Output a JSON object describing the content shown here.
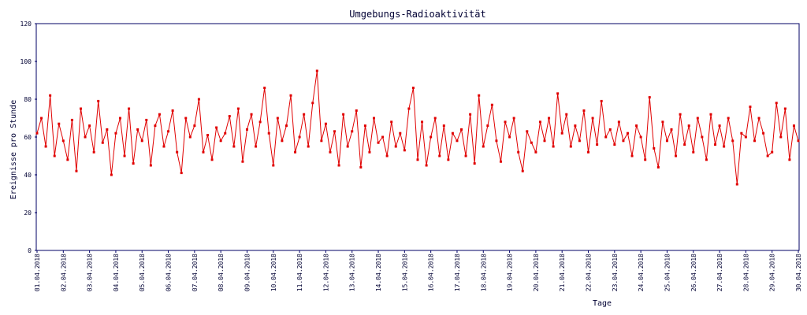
{
  "chart_data": {
    "type": "line",
    "title": "Umgebungs-Radioaktivität",
    "x_label": "Tage",
    "y_label": "Ereignisse pro Stunde",
    "categories": [
      "01.04.2018",
      null,
      null,
      null,
      null,
      null,
      "02.04.2018",
      null,
      null,
      null,
      null,
      null,
      "03.04.2018",
      null,
      null,
      null,
      null,
      null,
      "04.04.2018",
      null,
      null,
      null,
      null,
      null,
      "05.04.2018",
      null,
      null,
      null,
      null,
      null,
      "06.04.2018",
      null,
      null,
      null,
      null,
      null,
      "07.04.2018",
      null,
      null,
      null,
      null,
      null,
      "08.04.2018",
      null,
      null,
      null,
      null,
      null,
      "09.04.2018",
      null,
      null,
      null,
      null,
      null,
      "10.04.2018",
      null,
      null,
      null,
      null,
      null,
      "11.04.2018",
      null,
      null,
      null,
      null,
      null,
      "12.04.2018",
      null,
      null,
      null,
      null,
      null,
      "13.04.2018",
      null,
      null,
      null,
      null,
      null,
      "14.04.2018",
      null,
      null,
      null,
      null,
      null,
      "15.04.2018",
      null,
      null,
      null,
      null,
      null,
      "16.04.2018",
      null,
      null,
      null,
      null,
      null,
      "17.04.2018",
      null,
      null,
      null,
      null,
      null,
      "18.04.2018",
      null,
      null,
      null,
      null,
      null,
      "19.04.2018",
      null,
      null,
      null,
      null,
      null,
      "20.04.2018",
      null,
      null,
      null,
      null,
      null,
      "21.04.2018",
      null,
      null,
      null,
      null,
      null,
      "22.04.2018",
      null,
      null,
      null,
      null,
      null,
      "23.04.2018",
      null,
      null,
      null,
      null,
      null,
      "24.04.2018",
      null,
      null,
      null,
      null,
      null,
      "25.04.2018",
      null,
      null,
      null,
      null,
      null,
      "26.04.2018",
      null,
      null,
      null,
      null,
      null,
      "27.04.2018",
      null,
      null,
      null,
      null,
      null,
      "28.04.2018",
      null,
      null,
      null,
      null,
      null,
      "29.04.2018",
      null,
      null,
      null,
      null,
      null,
      "30.04.2018"
    ],
    "values": [
      62,
      70,
      55,
      82,
      50,
      67,
      58,
      48,
      69,
      42,
      75,
      60,
      66,
      52,
      79,
      57,
      64,
      40,
      62,
      70,
      50,
      75,
      46,
      64,
      58,
      69,
      45,
      66,
      72,
      55,
      63,
      74,
      52,
      41,
      70,
      60,
      66,
      80,
      52,
      61,
      48,
      65,
      58,
      62,
      71,
      55,
      75,
      47,
      64,
      72,
      55,
      68,
      86,
      62,
      45,
      70,
      58,
      66,
      82,
      52,
      60,
      72,
      55,
      78,
      95,
      58,
      67,
      52,
      63,
      45,
      72,
      55,
      63,
      74,
      44,
      66,
      52,
      70,
      57,
      60,
      50,
      68,
      55,
      62,
      53,
      75,
      86,
      48,
      68,
      45,
      60,
      70,
      50,
      66,
      48,
      62,
      58,
      64,
      50,
      72,
      46,
      82,
      55,
      66,
      77,
      58,
      47,
      68,
      60,
      70,
      52,
      42,
      63,
      57,
      52,
      68,
      58,
      70,
      55,
      83,
      62,
      72,
      55,
      66,
      58,
      74,
      52,
      70,
      56,
      79,
      60,
      64,
      56,
      68,
      58,
      62,
      50,
      66,
      60,
      48,
      81,
      54,
      44,
      68,
      58,
      64,
      50,
      72,
      56,
      66,
      52,
      70,
      60,
      48,
      72,
      56,
      66,
      55,
      70,
      58,
      35,
      62,
      60,
      76,
      58,
      70,
      62,
      50,
      52,
      78,
      60,
      75,
      48,
      66,
      58
    ],
    "color": "#e00000",
    "ylim": [
      0,
      120
    ],
    "yticks": [
      0,
      20,
      40,
      60,
      80,
      100,
      120
    ]
  }
}
